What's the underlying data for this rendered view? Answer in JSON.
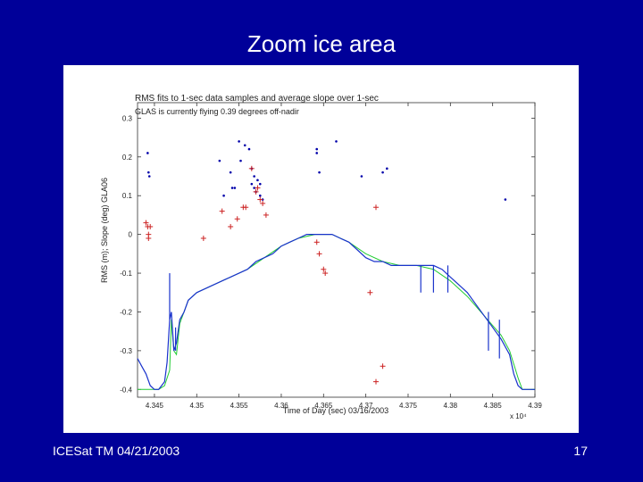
{
  "slide": {
    "title": "Zoom ice area",
    "footer_left": "ICESat TM 04/21/2003",
    "page_number": "17"
  },
  "colors": {
    "background": "#000099",
    "rms_series": "#0000aa",
    "slope_series": "#cc2222",
    "profile_line": "#1a33cc",
    "reference_line": "#22cc33"
  },
  "chart_data": {
    "type": "scatter",
    "title": "RMS fits to 1-sec data samples and average slope over 1-sec",
    "subtitle": "GLAS is currently flying 0.39 degrees off-nadir",
    "xlabel": "Time of Day (sec) 03/16/2003",
    "ylabel": "RMS (m); Slope (deg) GLA06",
    "x_multiplier": "x 10⁴",
    "xlim": [
      4.343,
      4.39
    ],
    "ylim": [
      -0.42,
      0.34
    ],
    "x_ticks": [
      4.345,
      4.35,
      4.355,
      4.36,
      4.365,
      4.37,
      4.375,
      4.38,
      4.385,
      4.39
    ],
    "x_tick_labels": [
      "4.345",
      "4.35",
      "4.355",
      "4.36",
      "4.365",
      "4.37",
      "4.375",
      "4.38",
      "4.385",
      "4.39"
    ],
    "y_ticks": [
      -0.4,
      -0.3,
      -0.2,
      -0.1,
      0,
      0.1,
      0.2,
      0.3
    ],
    "y_tick_labels": [
      "-0.4",
      "-0.3",
      "-0.2",
      "-0.1",
      "0",
      "0.1",
      "0.2",
      "0.3"
    ],
    "grid": false,
    "series": [
      {
        "marker": "dot",
        "points": [
          [
            4.3442,
            0.21
          ],
          [
            4.3443,
            0.16
          ],
          [
            4.3444,
            0.15
          ],
          [
            4.3527,
            0.19
          ],
          [
            4.3532,
            0.1
          ],
          [
            4.354,
            0.16
          ],
          [
            4.3542,
            0.12
          ],
          [
            4.3545,
            0.12
          ],
          [
            4.355,
            0.24
          ],
          [
            4.3552,
            0.19
          ],
          [
            4.3557,
            0.23
          ],
          [
            4.3562,
            0.22
          ],
          [
            4.3565,
            0.17
          ],
          [
            4.3568,
            0.15
          ],
          [
            4.3565,
            0.13
          ],
          [
            4.3568,
            0.12
          ],
          [
            4.357,
            0.11
          ],
          [
            4.3572,
            0.14
          ],
          [
            4.3575,
            0.13
          ],
          [
            4.3575,
            0.1
          ],
          [
            4.3578,
            0.09
          ],
          [
            4.3642,
            0.22
          ],
          [
            4.3642,
            0.21
          ],
          [
            4.3645,
            0.16
          ],
          [
            4.3665,
            0.24
          ],
          [
            4.3695,
            0.15
          ],
          [
            4.372,
            0.16
          ],
          [
            4.3725,
            0.17
          ],
          [
            4.3865,
            0.09
          ]
        ]
      },
      {
        "marker": "plus",
        "points": [
          [
            4.344,
            0.03
          ],
          [
            4.3442,
            0.02
          ],
          [
            4.3443,
            0.0
          ],
          [
            4.3443,
            -0.01
          ],
          [
            4.3445,
            0.02
          ],
          [
            4.3508,
            -0.01
          ],
          [
            4.353,
            0.06
          ],
          [
            4.354,
            0.02
          ],
          [
            4.3548,
            0.04
          ],
          [
            4.3555,
            0.07
          ],
          [
            4.3558,
            0.07
          ],
          [
            4.3565,
            0.17
          ],
          [
            4.357,
            0.11
          ],
          [
            4.3572,
            0.12
          ],
          [
            4.3575,
            0.09
          ],
          [
            4.3578,
            0.08
          ],
          [
            4.3582,
            0.05
          ],
          [
            4.3642,
            -0.02
          ],
          [
            4.3645,
            -0.05
          ],
          [
            4.365,
            -0.09
          ],
          [
            4.3652,
            -0.1
          ],
          [
            4.3705,
            -0.15
          ],
          [
            4.3712,
            0.07
          ],
          [
            4.3712,
            -0.38
          ],
          [
            4.372,
            -0.34
          ]
        ]
      }
    ],
    "profile_line": {
      "x": [
        4.343,
        4.3435,
        4.344,
        4.3445,
        4.345,
        4.3455,
        4.3462,
        4.3465,
        4.3468,
        4.347,
        4.3473,
        4.3476,
        4.348,
        4.3485,
        4.349,
        4.35,
        4.351,
        4.352,
        4.353,
        4.354,
        4.355,
        4.356,
        4.357,
        4.358,
        4.359,
        4.36,
        4.361,
        4.362,
        4.363,
        4.364,
        4.365,
        4.366,
        4.367,
        4.368,
        4.369,
        4.37,
        4.371,
        4.372,
        4.373,
        4.374,
        4.375,
        4.376,
        4.377,
        4.378,
        4.379,
        4.38,
        4.381,
        4.382,
        4.383,
        4.384,
        4.385,
        4.386,
        4.387,
        4.3875,
        4.388,
        4.3885,
        4.389,
        4.3895,
        4.39
      ],
      "y": [
        -0.32,
        -0.34,
        -0.36,
        -0.39,
        -0.4,
        -0.4,
        -0.38,
        -0.33,
        -0.22,
        -0.2,
        -0.3,
        -0.28,
        -0.22,
        -0.2,
        -0.17,
        -0.15,
        -0.14,
        -0.13,
        -0.12,
        -0.11,
        -0.1,
        -0.09,
        -0.07,
        -0.06,
        -0.05,
        -0.03,
        -0.02,
        -0.01,
        0.0,
        0.0,
        0.0,
        0.0,
        -0.01,
        -0.02,
        -0.04,
        -0.06,
        -0.07,
        -0.07,
        -0.08,
        -0.08,
        -0.08,
        -0.08,
        -0.08,
        -0.08,
        -0.09,
        -0.11,
        -0.13,
        -0.15,
        -0.18,
        -0.21,
        -0.24,
        -0.27,
        -0.31,
        -0.36,
        -0.39,
        -0.4,
        -0.4,
        -0.4,
        -0.4
      ]
    },
    "reference_line": {
      "x": [
        4.343,
        4.345,
        4.3455,
        4.3462,
        4.3468,
        4.347,
        4.3473,
        4.3476,
        4.348,
        4.349,
        4.35,
        4.352,
        4.354,
        4.356,
        4.358,
        4.36,
        4.362,
        4.364,
        4.366,
        4.368,
        4.37,
        4.372,
        4.374,
        4.376,
        4.378,
        4.38,
        4.382,
        4.384,
        4.386,
        4.387,
        4.388,
        4.3885,
        4.39
      ],
      "y": [
        -0.4,
        -0.4,
        -0.4,
        -0.39,
        -0.35,
        -0.22,
        -0.3,
        -0.31,
        -0.23,
        -0.17,
        -0.15,
        -0.13,
        -0.11,
        -0.09,
        -0.06,
        -0.03,
        -0.01,
        0.0,
        0.0,
        -0.02,
        -0.05,
        -0.07,
        -0.08,
        -0.08,
        -0.09,
        -0.12,
        -0.16,
        -0.21,
        -0.26,
        -0.3,
        -0.37,
        -0.4,
        -0.4
      ]
    },
    "spikes": [
      {
        "x": 4.3468,
        "y1": -0.22,
        "y2": -0.1
      },
      {
        "x": 4.3475,
        "y1": -0.3,
        "y2": -0.24
      },
      {
        "x": 4.3765,
        "y1": -0.08,
        "y2": -0.15
      },
      {
        "x": 4.378,
        "y1": -0.08,
        "y2": -0.15
      },
      {
        "x": 4.3797,
        "y1": -0.08,
        "y2": -0.15
      },
      {
        "x": 4.3845,
        "y1": -0.2,
        "y2": -0.3
      },
      {
        "x": 4.3858,
        "y1": -0.22,
        "y2": -0.32
      }
    ]
  }
}
